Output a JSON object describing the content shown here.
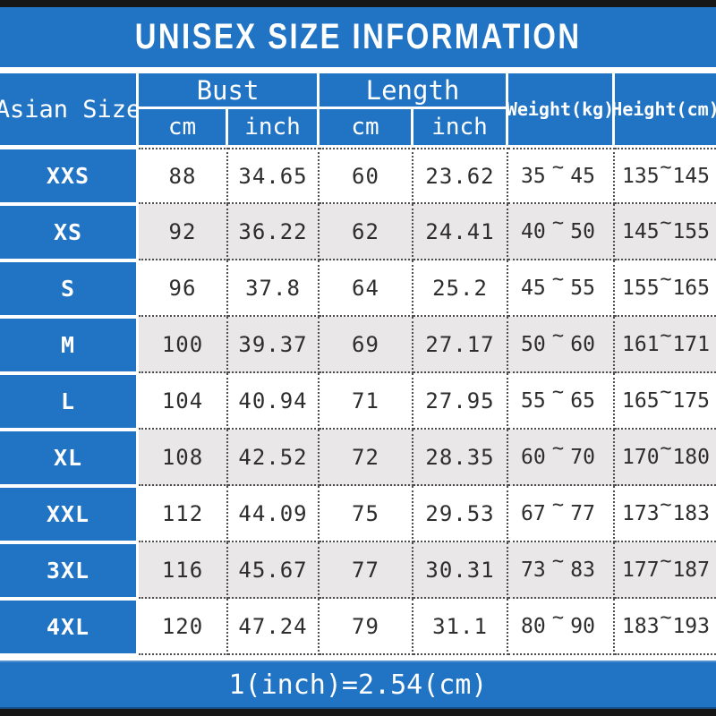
{
  "title": "UNISEX SIZE INFORMATION",
  "colors": {
    "accent_blue": "#2173C4",
    "alt_row_gray": "#E9E7E8",
    "bar_black": "#161616",
    "text_dark": "#2d2d2d"
  },
  "header": {
    "size_col": "Asian Size",
    "bust": "Bust",
    "length": "Length",
    "weight": "Weight(kg)",
    "height": "Height(cm)",
    "bust_cm": "cm",
    "bust_inch": "inch",
    "length_cm": "cm",
    "length_inch": "inch"
  },
  "table": {
    "tilde": "~",
    "rows": [
      {
        "size": "XXS",
        "bust_cm": "88",
        "bust_in": "34.65",
        "len_cm": "60",
        "len_in": "23.62",
        "w_lo": "35",
        "w_hi": "45",
        "h_lo": "135",
        "h_hi": "145"
      },
      {
        "size": "XS",
        "bust_cm": "92",
        "bust_in": "36.22",
        "len_cm": "62",
        "len_in": "24.41",
        "w_lo": "40",
        "w_hi": "50",
        "h_lo": "145",
        "h_hi": "155"
      },
      {
        "size": "S",
        "bust_cm": "96",
        "bust_in": "37.8",
        "len_cm": "64",
        "len_in": "25.2",
        "w_lo": "45",
        "w_hi": "55",
        "h_lo": "155",
        "h_hi": "165"
      },
      {
        "size": "M",
        "bust_cm": "100",
        "bust_in": "39.37",
        "len_cm": "69",
        "len_in": "27.17",
        "w_lo": "50",
        "w_hi": "60",
        "h_lo": "161",
        "h_hi": "171"
      },
      {
        "size": "L",
        "bust_cm": "104",
        "bust_in": "40.94",
        "len_cm": "71",
        "len_in": "27.95",
        "w_lo": "55",
        "w_hi": "65",
        "h_lo": "165",
        "h_hi": "175"
      },
      {
        "size": "XL",
        "bust_cm": "108",
        "bust_in": "42.52",
        "len_cm": "72",
        "len_in": "28.35",
        "w_lo": "60",
        "w_hi": "70",
        "h_lo": "170",
        "h_hi": "180"
      },
      {
        "size": "XXL",
        "bust_cm": "112",
        "bust_in": "44.09",
        "len_cm": "75",
        "len_in": "29.53",
        "w_lo": "67",
        "w_hi": "77",
        "h_lo": "173",
        "h_hi": "183"
      },
      {
        "size": "3XL",
        "bust_cm": "116",
        "bust_in": "45.67",
        "len_cm": "77",
        "len_in": "30.31",
        "w_lo": "73",
        "w_hi": "83",
        "h_lo": "177",
        "h_hi": "187"
      },
      {
        "size": "4XL",
        "bust_cm": "120",
        "bust_in": "47.24",
        "len_cm": "79",
        "len_in": "31.1",
        "w_lo": "80",
        "w_hi": "90",
        "h_lo": "183",
        "h_hi": "193"
      }
    ]
  },
  "footer": {
    "note": "1(inch)=2.54(cm)"
  },
  "chart_data": {
    "type": "table",
    "title": "UNISEX SIZE INFORMATION",
    "columns": [
      "Asian Size",
      "Bust cm",
      "Bust inch",
      "Length cm",
      "Length inch",
      "Weight(kg)",
      "Height(cm)"
    ],
    "rows": [
      [
        "XXS",
        88,
        34.65,
        60,
        23.62,
        "35~45",
        "135~145"
      ],
      [
        "XS",
        92,
        36.22,
        62,
        24.41,
        "40~50",
        "145~155"
      ],
      [
        "S",
        96,
        37.8,
        64,
        25.2,
        "45~55",
        "155~165"
      ],
      [
        "M",
        100,
        39.37,
        69,
        27.17,
        "50~60",
        "161~171"
      ],
      [
        "L",
        104,
        40.94,
        71,
        27.95,
        "55~65",
        "165~175"
      ],
      [
        "XL",
        108,
        42.52,
        72,
        28.35,
        "60~70",
        "170~180"
      ],
      [
        "XXL",
        112,
        44.09,
        75,
        29.53,
        "67~77",
        "173~183"
      ],
      [
        "3XL",
        116,
        45.67,
        77,
        30.31,
        "73~83",
        "177~187"
      ],
      [
        "4XL",
        120,
        47.24,
        79,
        31.1,
        "80~90",
        "183~193"
      ]
    ],
    "footnote": "1(inch)=2.54(cm)"
  }
}
